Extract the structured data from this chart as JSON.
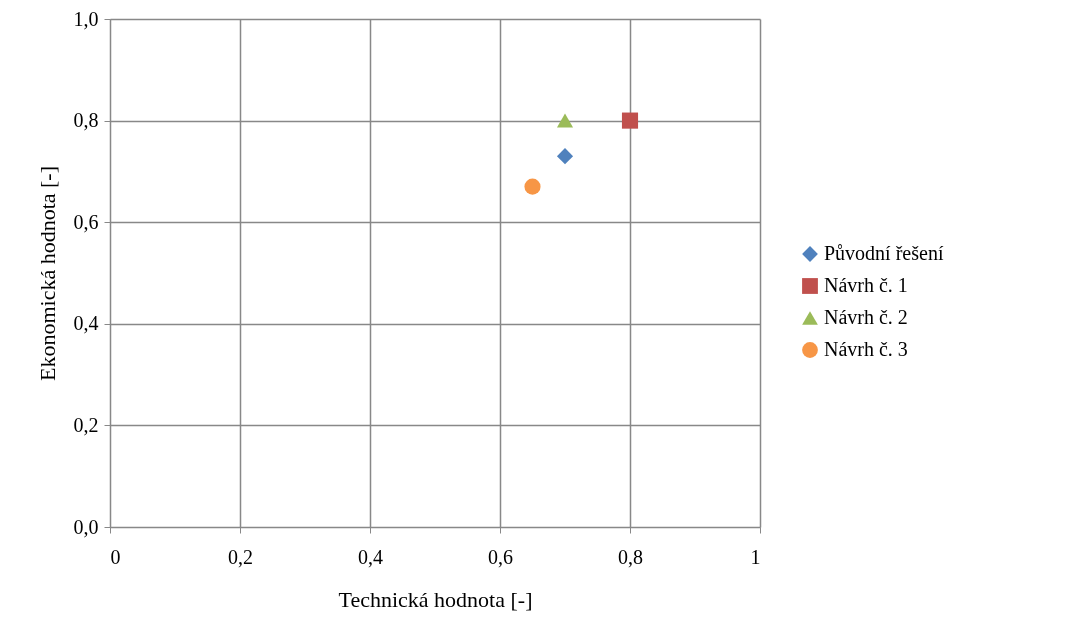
{
  "chart_data": {
    "type": "scatter",
    "xlabel": "Technická hodnota [-]",
    "ylabel": "Ekonomická hodnota [-]",
    "series": [
      {
        "name": "Původní řešení",
        "color": "#4f81bd",
        "marker": "diamond",
        "x": [
          0.7
        ],
        "values": [
          0.73
        ]
      },
      {
        "name": "Návrh č. 1",
        "color": "#c0504d",
        "marker": "square",
        "x": [
          0.8
        ],
        "values": [
          0.8
        ]
      },
      {
        "name": "Návrh č. 2",
        "color": "#9bbb59",
        "marker": "triangle",
        "x": [
          0.7
        ],
        "values": [
          0.8
        ]
      },
      {
        "name": "Návrh č. 3",
        "color": "#f79646",
        "marker": "circle",
        "x": [
          0.65
        ],
        "values": [
          0.67
        ]
      }
    ],
    "xlim": [
      0,
      1
    ],
    "ylim": [
      0,
      1
    ],
    "xticks": [
      0,
      {
        "value": 0.2,
        "label": "0,2"
      },
      {
        "value": 0.4,
        "label": "0,4"
      },
      {
        "value": 0.6,
        "label": "0,6"
      },
      {
        "value": 0.8,
        "label": "0,8"
      },
      1
    ],
    "yticks": [
      {
        "value": 0,
        "label": "0,0"
      },
      {
        "value": 0.2,
        "label": "0,2"
      },
      {
        "value": 0.4,
        "label": "0,4"
      },
      {
        "value": 0.6,
        "label": "0,6"
      },
      {
        "value": 0.8,
        "label": "0,8"
      },
      {
        "value": 1,
        "label": "1,0"
      }
    ],
    "grid": true,
    "legend": "right"
  }
}
